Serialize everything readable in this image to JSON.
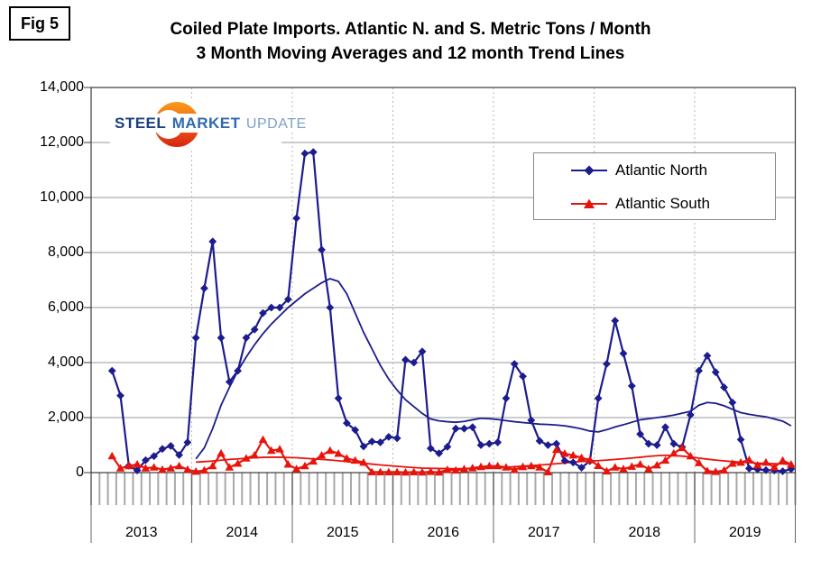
{
  "fig_label": "Fig 5",
  "title_line1": "Coiled Plate Imports. Atlantic N. and S. Metric Tons / Month",
  "title_line2": "3 Month Moving Averages and 12 month Trend Lines",
  "logo": {
    "word1": "STEEL",
    "word2": "MARKET",
    "word3": "UPDATE"
  },
  "legend": {
    "items": [
      {
        "label": "Atlantic North",
        "color": "#1c1c8e",
        "marker": "diamond"
      },
      {
        "label": "Atlantic South",
        "color": "#e8140c",
        "marker": "triangle"
      }
    ]
  },
  "chart_data": {
    "type": "line",
    "title": "Coiled Plate Imports. Atlantic N. and S. Metric Tons / Month",
    "subtitle": "3 Month Moving Averages and 12 month Trend Lines",
    "ylabel": "Metric Tons / Month",
    "ylim": [
      0,
      14000
    ],
    "grid": true,
    "legend_position": "upper right",
    "y_ticks": [
      {
        "value": 14000,
        "label": "14,000"
      },
      {
        "value": 12000,
        "label": "12,000"
      },
      {
        "value": 10000,
        "label": "10,000"
      },
      {
        "value": 8000,
        "label": "8,000"
      },
      {
        "value": 6000,
        "label": "6,000"
      },
      {
        "value": 4000,
        "label": "4,000"
      },
      {
        "value": 2000,
        "label": "2,000"
      },
      {
        "value": 0,
        "label": "0"
      }
    ],
    "years": [
      "2013",
      "2014",
      "2015",
      "2016",
      "2017",
      "2018",
      "2019"
    ],
    "x_unit": "month",
    "months_per_year": 12,
    "series": [
      {
        "name": "Atlantic North",
        "kind": "moving-average",
        "color": "#1c1c8e",
        "marker": "diamond",
        "first_point": "2013-03",
        "start_index": 2,
        "values": [
          3700,
          2800,
          250,
          80,
          450,
          600,
          860,
          970,
          640,
          1100,
          4900,
          6700,
          8400,
          4900,
          3300,
          3700,
          4900,
          5200,
          5800,
          6000,
          6000,
          6300,
          9250,
          11600,
          11650,
          8100,
          6000,
          2700,
          1800,
          1550,
          950,
          1130,
          1100,
          1300,
          1250,
          4100,
          4000,
          4400,
          880,
          700,
          940,
          1600,
          1600,
          1650,
          1000,
          1050,
          1100,
          2700,
          3950,
          3500,
          1900,
          1150,
          1000,
          1050,
          430,
          370,
          180,
          420,
          2700,
          3950,
          5520,
          4330,
          3150,
          1400,
          1050,
          1000,
          1650,
          1050,
          930,
          2100,
          3700,
          4250,
          3650,
          3100,
          2550,
          1200,
          150,
          120,
          90,
          80,
          50,
          130
        ]
      },
      {
        "name": "Atlantic South",
        "kind": "moving-average",
        "color": "#e8140c",
        "marker": "triangle",
        "first_point": "2013-03",
        "start_index": 2,
        "values": [
          600,
          160,
          240,
          300,
          160,
          190,
          110,
          160,
          240,
          110,
          40,
          80,
          240,
          700,
          190,
          330,
          520,
          630,
          1200,
          800,
          850,
          300,
          130,
          240,
          410,
          630,
          800,
          690,
          520,
          440,
          370,
          20,
          20,
          20,
          20,
          10,
          20,
          10,
          30,
          10,
          100,
          80,
          130,
          165,
          210,
          240,
          240,
          190,
          100,
          210,
          240,
          190,
          20,
          830,
          690,
          630,
          540,
          460,
          250,
          50,
          190,
          130,
          220,
          300,
          130,
          270,
          440,
          700,
          900,
          600,
          350,
          60,
          30,
          80,
          330,
          370,
          460,
          270,
          370,
          200,
          440,
          300
        ]
      },
      {
        "name": "Atlantic North 12 month trend",
        "kind": "trend",
        "color": "#1c1c8e",
        "marker": "none",
        "first_point": "2014-01",
        "start_index": 12,
        "values": [
          500,
          900,
          1600,
          2450,
          3100,
          3700,
          4200,
          4650,
          5050,
          5400,
          5700,
          6000,
          6250,
          6500,
          6700,
          6900,
          7050,
          6950,
          6500,
          5800,
          5100,
          4500,
          3900,
          3400,
          3000,
          2650,
          2400,
          2150,
          1950,
          1880,
          1850,
          1830,
          1860,
          1920,
          1975,
          1960,
          1930,
          1890,
          1850,
          1820,
          1790,
          1760,
          1750,
          1730,
          1700,
          1650,
          1590,
          1510,
          1480,
          1560,
          1660,
          1740,
          1830,
          1920,
          1960,
          2000,
          2040,
          2090,
          2160,
          2230,
          2450,
          2550,
          2520,
          2430,
          2300,
          2180,
          2120,
          2070,
          2030,
          1950,
          1870,
          1700
        ]
      },
      {
        "name": "Atlantic South 12 month trend",
        "kind": "trend",
        "color": "#e8140c",
        "marker": "none",
        "first_point": "2014-01",
        "start_index": 12,
        "values": [
          380,
          400,
          420,
          450,
          480,
          500,
          520,
          540,
          555,
          560,
          560,
          550,
          540,
          520,
          500,
          480,
          460,
          430,
          400,
          370,
          340,
          310,
          280,
          255,
          230,
          205,
          185,
          165,
          155,
          150,
          145,
          140,
          145,
          150,
          160,
          170,
          180,
          195,
          215,
          235,
          255,
          275,
          300,
          325,
          350,
          380,
          405,
          420,
          435,
          455,
          480,
          505,
          530,
          560,
          590,
          615,
          630,
          620,
          600,
          570,
          530,
          490,
          455,
          425,
          400,
          380,
          360,
          345,
          335,
          325,
          315,
          305
        ]
      }
    ]
  },
  "colors": {
    "north": "#1c1c8e",
    "south": "#e8140c",
    "gridline": "#9a9a9a",
    "year_gridline": "#b8b8b8",
    "minor_tick": "#a8a8a8",
    "axis": "#3a3a3a",
    "logo_orange": "#f89c1c",
    "logo_red": "#d52310"
  }
}
